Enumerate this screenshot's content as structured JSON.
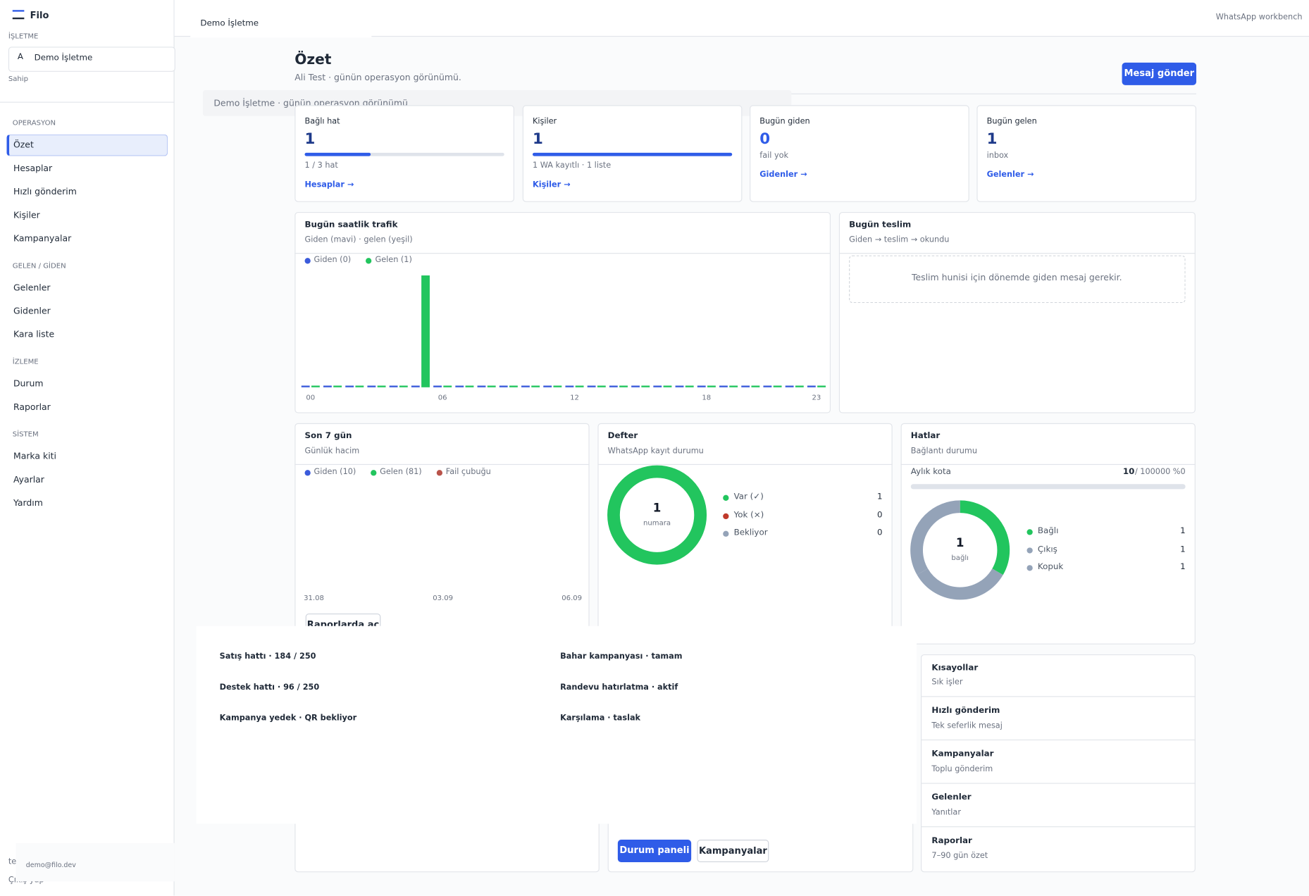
{
  "sidebar": {
    "brand": "Filo",
    "business_label": "İŞLETME",
    "business_initial": "A",
    "business_name": "Demo İşletme",
    "role": "Sahip",
    "groups": [
      {
        "title": "OPERASYON",
        "items": [
          "Özet",
          "Hesaplar",
          "Hızlı gönderim",
          "Kişiler",
          "Kampanyalar"
        ]
      },
      {
        "title": "GELEN / GİDEN",
        "items": [
          "Gelenler",
          "Gidenler",
          "Kara liste"
        ]
      },
      {
        "title": "İZLEME",
        "items": [
          "Durum",
          "Raporlar"
        ]
      },
      {
        "title": "SİSTEM",
        "items": [
          "Marka kiti",
          "Ayarlar",
          "Yardım"
        ]
      }
    ],
    "user_partial": "te",
    "user_email": "demo@filo.dev",
    "logout": "Çıkış yap"
  },
  "topbar": {
    "tab": "Demo İşletme",
    "app": "WhatsApp workbench"
  },
  "header": {
    "title": "Özet",
    "subtitle": "Ali Test · günün operasyon görünümü.",
    "button": "Mesaj gönder"
  },
  "banner": "Demo İşletme · günün operasyon görünümü",
  "stats": [
    {
      "label": "Bağlı hat",
      "value": 1,
      "note": "1 / 3 hat",
      "link": "Hesaplar →"
    },
    {
      "label": "Kişiler",
      "value": 1,
      "note": "1 WA kayıtlı · 1 liste",
      "link": "Kişiler →"
    },
    {
      "label": "Bugün giden",
      "value": 0,
      "note": "fail yok",
      "link": "Gidenler →"
    },
    {
      "label": "Bugün gelen",
      "value": 1,
      "note": "inbox",
      "link": "Gelenler →"
    }
  ],
  "chart_data": [
    {
      "type": "bar",
      "title": "Bugün saatlik trafik",
      "subtitle": "Giden (mavi) · gelen (yeşil)",
      "categories": [
        "00",
        null,
        null,
        null,
        null,
        null,
        "06",
        null,
        null,
        null,
        null,
        null,
        "12",
        null,
        null,
        null,
        null,
        null,
        "18",
        null,
        null,
        null,
        null,
        "23"
      ],
      "series": [
        {
          "name": "Giden (0)",
          "color": "#3b5bdb",
          "values": [
            0,
            0,
            0,
            0,
            0,
            0,
            0,
            0,
            0,
            0,
            0,
            0,
            0,
            0,
            0,
            0,
            0,
            0,
            0,
            0,
            0,
            0,
            0,
            0
          ]
        },
        {
          "name": "Gelen (1)",
          "color": "#22c55e",
          "values": [
            0,
            0,
            0,
            0,
            0,
            1,
            0,
            0,
            0,
            0,
            0,
            0,
            0,
            0,
            0,
            0,
            0,
            0,
            0,
            0,
            0,
            0,
            0,
            0
          ]
        }
      ],
      "ylim": [
        0,
        1
      ]
    },
    {
      "type": "bar",
      "title": "Son 7 gün",
      "subtitle": "Günlük hacim",
      "categories": [
        "31.08",
        null,
        null,
        "03.09",
        null,
        null,
        "06.09"
      ],
      "series": [
        {
          "name": "Giden (10)",
          "color": "#3b5bdb",
          "values": [
            null,
            null,
            null,
            null,
            null,
            null,
            null
          ]
        },
        {
          "name": "Gelen (81)",
          "color": "#22c55e",
          "values": [
            null,
            null,
            null,
            null,
            null,
            null,
            null
          ]
        },
        {
          "name": "Fail çubuğu",
          "color": "#b9534a",
          "values": [
            null,
            null,
            null,
            null,
            null,
            null,
            null
          ]
        }
      ],
      "ylim": [
        0,
        1
      ],
      "button": "Raporlarda aç"
    },
    {
      "type": "donut",
      "title": "Defter",
      "subtitle": "WhatsApp kayıt durumu",
      "center_value": 1,
      "center_label": "numara",
      "categories": [
        "Var (✓)",
        "Yok (×)",
        "Bekliyor"
      ],
      "values": [
        1,
        0,
        0
      ],
      "colors": [
        "#22c55e",
        "#c0392b",
        "#94a3b8"
      ]
    },
    {
      "type": "donut",
      "title": "Hatlar",
      "subtitle": "Bağlantı durumu",
      "center_value": 1,
      "center_label": "bağlı",
      "categories": [
        "Bağlı",
        "Çıkış",
        "Kopuk"
      ],
      "values": [
        1,
        1,
        1
      ],
      "colors": [
        "#22c55e",
        "#94a3b8",
        "#94a3b8"
      ],
      "quota": {
        "label": "Aylık kota",
        "used": 10,
        "limit": 100000,
        "limit_label": "/ 100000",
        "percent": 0,
        "percent_label": "%0"
      }
    }
  ],
  "delivery": {
    "title": "Bugün teslim",
    "subtitle": "Giden → teslim → okundu",
    "empty": "Teslim hunisi için dönemde giden mesaj gerekir."
  },
  "overlay": {
    "left": [
      "Satış hattı · 184 / 250",
      "Destek hattı · 96 / 250",
      "Kampanya yedek · QR bekliyor"
    ],
    "right": [
      "Bahar kampanyası · tamam",
      "Randevu hatırlatma · aktif",
      "Karşılama · taslak"
    ]
  },
  "actions": {
    "buttons": [
      "Durum paneli",
      "Kampanyalar"
    ]
  },
  "shortcuts": {
    "title": "Kısayollar",
    "subtitle": "Sık işler",
    "items": [
      {
        "title": "Hızlı gönderim",
        "desc": "Tek seferlik mesaj"
      },
      {
        "title": "Kampanyalar",
        "desc": "Toplu gönderim"
      },
      {
        "title": "Gelenler",
        "desc": "Yanıtlar"
      },
      {
        "title": "Raporlar",
        "desc": "7–90 gün özet"
      }
    ]
  }
}
